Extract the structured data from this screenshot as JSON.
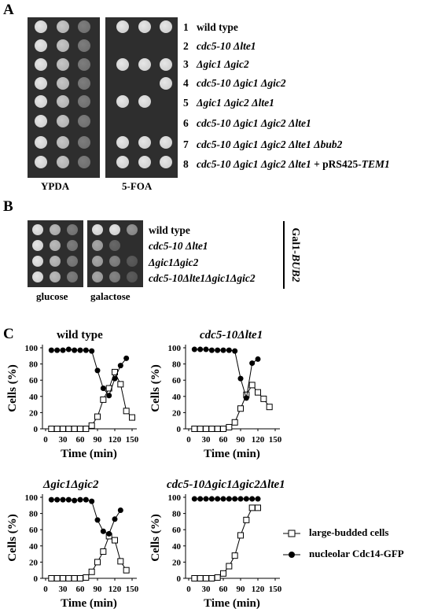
{
  "panel_a": {
    "letter": "A",
    "plate_labels": [
      "YPDA",
      "5-FOA"
    ],
    "strains": [
      {
        "num": "1",
        "name": "wild type",
        "italic": false
      },
      {
        "num": "2",
        "name": "cdc5-10 Δlte1",
        "italic": true
      },
      {
        "num": "3",
        "name": "Δgic1 Δgic2",
        "italic": true
      },
      {
        "num": "4",
        "name": "cdc5-10 Δgic1 Δgic2",
        "italic": true
      },
      {
        "num": "5",
        "name": "Δgic1 Δgic2 Δlte1",
        "italic": true
      },
      {
        "num": "6",
        "name": "cdc5-10 Δgic1 Δgic2 Δlte1",
        "italic": true
      },
      {
        "num": "7",
        "name": "cdc5-10 Δgic1 Δgic2 Δlte1 Δbub2",
        "italic": true
      },
      {
        "num": "8",
        "name": "cdc5-10 Δgic1 Δgic2 Δlte1",
        "italic": true,
        "suffix_plain": " + pRS425-",
        "suffix_italic": "TEM1"
      }
    ],
    "foa_growth": [
      [
        1,
        1,
        1
      ],
      [
        0,
        0,
        0
      ],
      [
        1,
        1,
        1
      ],
      [
        0,
        0,
        1
      ],
      [
        1,
        1,
        0
      ],
      [
        0,
        0,
        0
      ],
      [
        1,
        1,
        1
      ],
      [
        1,
        1,
        1
      ]
    ]
  },
  "panel_b": {
    "letter": "B",
    "plate_labels": [
      "glucose",
      "galactose"
    ],
    "strains": [
      "wild type",
      "cdc5-10 Δlte1",
      "Δgic1Δgic2",
      "cdc5-10Δlte1Δgic1Δgic2"
    ],
    "side_label_plain": "Gal1-",
    "side_label_italic": "BUB2",
    "galactose_growth": [
      [
        1,
        1,
        0.6
      ],
      [
        0.7,
        0.3,
        0
      ],
      [
        0.7,
        0.5,
        0.2
      ],
      [
        0.7,
        0.5,
        0.2
      ]
    ]
  },
  "panel_c": {
    "letter": "C",
    "legend": {
      "large_budded": "large-budded cells",
      "nucleolar": "nucleolar Cdc14-GFP"
    }
  },
  "chart_data": [
    {
      "type": "line",
      "title": "wild type",
      "xlabel": "Time (min)",
      "ylabel": "Cells (%)",
      "xlim": [
        0,
        150
      ],
      "ylim": [
        0,
        100
      ],
      "xticks": [
        0,
        30,
        60,
        90,
        120,
        150
      ],
      "yticks": [
        0,
        20,
        40,
        60,
        80,
        100
      ],
      "x": [
        0,
        10,
        20,
        30,
        40,
        50,
        60,
        70,
        80,
        90,
        100,
        110,
        120,
        130,
        140,
        150
      ],
      "series": [
        {
          "name": "large-budded cells",
          "marker": "open-square",
          "values": [
            null,
            0,
            0,
            0,
            0,
            0,
            0,
            0,
            4,
            15,
            36,
            50,
            70,
            55,
            22,
            14
          ]
        },
        {
          "name": "nucleolar Cdc14-GFP",
          "marker": "filled-circle",
          "values": [
            null,
            97,
            97,
            97,
            98,
            97,
            97,
            97,
            96,
            72,
            50,
            41,
            62,
            78,
            87,
            null
          ]
        }
      ]
    },
    {
      "type": "line",
      "title": "cdc5-10Δlte1",
      "xlabel": "Time (min)",
      "ylabel": "Cells (%)",
      "xlim": [
        0,
        150
      ],
      "ylim": [
        0,
        100
      ],
      "xticks": [
        0,
        30,
        60,
        90,
        120,
        150
      ],
      "yticks": [
        0,
        20,
        40,
        60,
        80,
        100
      ],
      "x": [
        0,
        10,
        20,
        30,
        40,
        50,
        60,
        70,
        80,
        90,
        100,
        110,
        120,
        130,
        140,
        150
      ],
      "series": [
        {
          "name": "large-budded cells",
          "marker": "open-square",
          "values": [
            null,
            0,
            0,
            0,
            0,
            0,
            0,
            2,
            8,
            25,
            42,
            54,
            45,
            37,
            27,
            null
          ]
        },
        {
          "name": "nucleolar Cdc14-GFP",
          "marker": "filled-circle",
          "values": [
            null,
            98,
            98,
            98,
            97,
            97,
            97,
            97,
            96,
            62,
            38,
            81,
            86,
            null,
            null,
            null
          ]
        }
      ]
    },
    {
      "type": "line",
      "title": "Δgic1Δgic2",
      "xlabel": "Time (min)",
      "ylabel": "Cells (%)",
      "xlim": [
        0,
        150
      ],
      "ylim": [
        0,
        100
      ],
      "xticks": [
        0,
        30,
        60,
        90,
        120,
        150
      ],
      "yticks": [
        0,
        20,
        40,
        60,
        80,
        100
      ],
      "x": [
        0,
        10,
        20,
        30,
        40,
        50,
        60,
        70,
        80,
        90,
        100,
        110,
        120,
        130,
        140,
        150
      ],
      "series": [
        {
          "name": "large-budded cells",
          "marker": "open-square",
          "values": [
            null,
            0,
            0,
            0,
            0,
            0,
            0,
            1,
            8,
            20,
            33,
            52,
            47,
            21,
            10,
            null
          ]
        },
        {
          "name": "nucleolar Cdc14-GFP",
          "marker": "filled-circle",
          "values": [
            null,
            97,
            97,
            97,
            97,
            96,
            97,
            97,
            95,
            72,
            58,
            55,
            73,
            84,
            null,
            null
          ]
        }
      ]
    },
    {
      "type": "line",
      "title": "cdc5-10Δgic1Δgic2Δlte1",
      "xlabel": "Time (min)",
      "ylabel": "Cells (%)",
      "xlim": [
        0,
        150
      ],
      "ylim": [
        0,
        100
      ],
      "xticks": [
        0,
        30,
        60,
        90,
        120,
        150
      ],
      "yticks": [
        0,
        20,
        40,
        60,
        80,
        100
      ],
      "x": [
        0,
        10,
        20,
        30,
        40,
        50,
        60,
        70,
        80,
        90,
        100,
        110,
        120,
        130,
        140,
        150
      ],
      "series": [
        {
          "name": "large-budded cells",
          "marker": "open-square",
          "values": [
            null,
            0,
            0,
            0,
            0,
            1,
            6,
            15,
            28,
            53,
            72,
            87,
            87,
            null,
            null,
            null
          ]
        },
        {
          "name": "nucleolar Cdc14-GFP",
          "marker": "filled-circle",
          "values": [
            null,
            98,
            98,
            98,
            98,
            98,
            98,
            98,
            98,
            98,
            98,
            98,
            98,
            null,
            null,
            null
          ]
        }
      ]
    }
  ]
}
